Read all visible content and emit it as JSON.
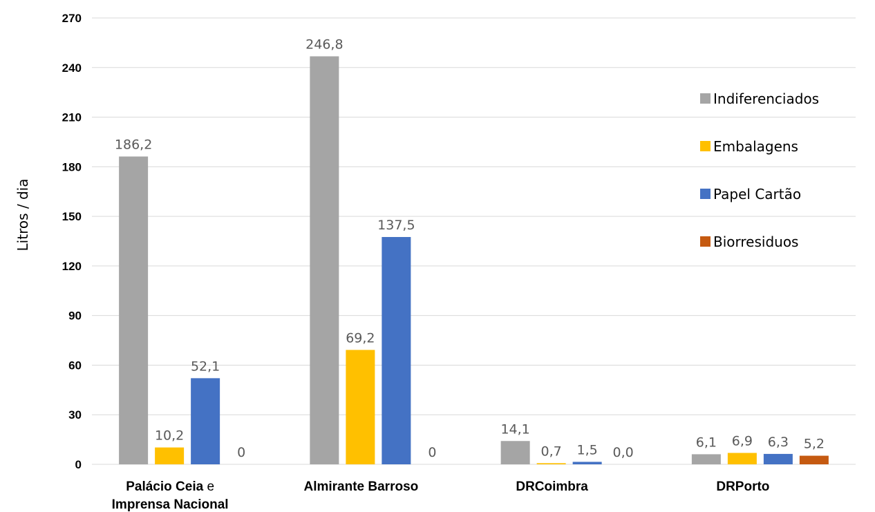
{
  "chart_data": {
    "type": "bar",
    "categories": [
      [
        "Palácio Ceia e",
        "Imprensa Nacional"
      ],
      [
        "Almirante Barroso"
      ],
      [
        "DRCoimbra"
      ],
      [
        "DRPorto"
      ]
    ],
    "series": [
      {
        "name": "Indiferenciados",
        "color": "#A5A5A5",
        "values": [
          186.2,
          246.8,
          14.1,
          6.1
        ],
        "labels": [
          "186,2",
          "246,8",
          "14,1",
          "6,1"
        ]
      },
      {
        "name": "Embalagens",
        "color": "#FFC000",
        "values": [
          10.2,
          69.2,
          0.7,
          6.9
        ],
        "labels": [
          "10,2",
          "69,2",
          "0,7",
          "6,9"
        ]
      },
      {
        "name": "Papel Cartão",
        "color": "#4472C4",
        "values": [
          52.1,
          137.5,
          1.5,
          6.3
        ],
        "labels": [
          "52,1",
          "137,5",
          "1,5",
          "6,3"
        ]
      },
      {
        "name": "Biorresiduos",
        "color": "#C55A11",
        "values": [
          0,
          0,
          0.0,
          5.2
        ],
        "labels": [
          "0",
          "0",
          "0,0",
          "5,2"
        ]
      }
    ],
    "xlabel": "",
    "ylabel": "Litros / dia",
    "ylim": [
      0,
      270
    ],
    "yticks": [
      0,
      30,
      60,
      90,
      120,
      150,
      180,
      210,
      240,
      270
    ],
    "grid": true,
    "legend": "right"
  }
}
